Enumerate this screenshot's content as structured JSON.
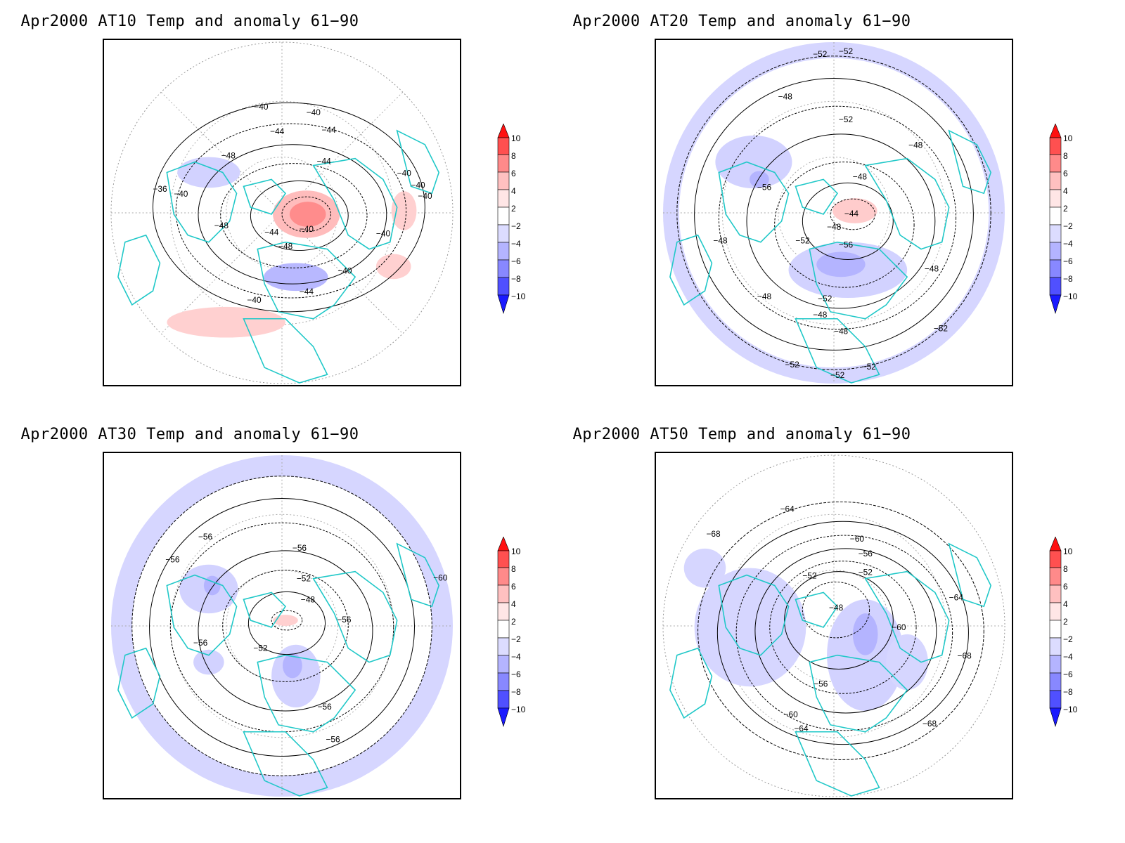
{
  "panels": [
    {
      "id": "at10",
      "title": "Apr2000 AT10 Temp and anomaly 61−90",
      "contour_labels": [
        "−40",
        "−40",
        "−44",
        "−44",
        "−48",
        "−44",
        "−36",
        "−48",
        "−44",
        "−40",
        "−48",
        "−40",
        "−40",
        "−40",
        "−44",
        "−40",
        "−40",
        "−40",
        "−40"
      ]
    },
    {
      "id": "at20",
      "title": "Apr2000 AT20 Temp and anomaly 61−90",
      "contour_labels": [
        "−52",
        "−52",
        "−48",
        "−52",
        "−48",
        "−56",
        "−48",
        "−44",
        "−48",
        "−52",
        "−56",
        "−48",
        "−48",
        "−48",
        "−52",
        "−48",
        "−48",
        "−52",
        "−52",
        "−52",
        "−52"
      ]
    },
    {
      "id": "at30",
      "title": "Apr2000 AT30 Temp and anomaly 61−90",
      "contour_labels": [
        "−56",
        "−56",
        "−56",
        "−52",
        "−48",
        "−56",
        "−56",
        "−52",
        "−60",
        "−56",
        "−56"
      ]
    },
    {
      "id": "at50",
      "title": "Apr2000 AT50 Temp and anomaly 61−90",
      "contour_labels": [
        "−64",
        "−68",
        "−60",
        "−56",
        "−52",
        "−52",
        "−48",
        "−60",
        "−64",
        "−68",
        "−56",
        "−60",
        "−64",
        "−68"
      ]
    }
  ],
  "colorbar": {
    "labels": [
      "10",
      "8",
      "6",
      "4",
      "2",
      "−2",
      "−4",
      "−6",
      "−8",
      "−10"
    ],
    "colors": [
      "#ff1010",
      "#ff5050",
      "#ff8a8a",
      "#ffc0c0",
      "#ffe6e6",
      "#ffffff",
      "#dcdcff",
      "#b4b4ff",
      "#8888ff",
      "#5050ff",
      "#1a1aff"
    ]
  },
  "colors": {
    "coastline": "#20c8c8",
    "contour": "#000000",
    "warm_anomaly": "#ffc8c8",
    "cold_anomaly": "#d2d2ff"
  }
}
